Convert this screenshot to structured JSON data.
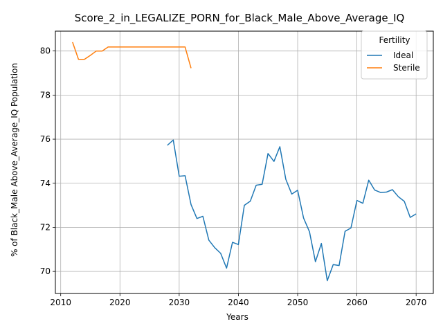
{
  "chart_data": {
    "type": "line",
    "title": "Score_2_in_LEGALIZE_PORN_for_Black_Male_Above_Average_IQ",
    "xlabel": "Years",
    "ylabel": "% of Black_Male Above_Average_IQ Population",
    "xlim": [
      2009.1,
      2072.9
    ],
    "ylim": [
      69.0,
      80.9
    ],
    "xticks": [
      2010,
      2020,
      2030,
      2040,
      2050,
      2060,
      2070
    ],
    "yticks": [
      70,
      72,
      74,
      76,
      78,
      80
    ],
    "grid": true,
    "legend": {
      "title": "Fertility",
      "placement": "top-right"
    },
    "series": [
      {
        "name": "Ideal",
        "color": "#1f77b4",
        "x": [
          2028,
          2029,
          2030,
          2031,
          2032,
          2033,
          2034,
          2035,
          2036,
          2037,
          2038,
          2039,
          2040,
          2041,
          2042,
          2043,
          2044,
          2045,
          2046,
          2047,
          2048,
          2049,
          2050,
          2051,
          2052,
          2053,
          2054,
          2055,
          2056,
          2057,
          2058,
          2059,
          2060,
          2061,
          2062,
          2063,
          2064,
          2065,
          2066,
          2067,
          2068,
          2069,
          2070
        ],
        "y": [
          75.72,
          75.96,
          74.32,
          74.34,
          73.03,
          72.4,
          72.5,
          71.42,
          71.08,
          70.82,
          70.15,
          71.32,
          71.22,
          73.0,
          73.19,
          73.91,
          73.95,
          75.35,
          74.99,
          75.66,
          74.18,
          73.51,
          73.68,
          72.42,
          71.8,
          70.44,
          71.27,
          69.58,
          70.31,
          70.27,
          71.82,
          71.97,
          73.22,
          73.09,
          74.14,
          73.69,
          73.58,
          73.6,
          73.71,
          73.39,
          73.18,
          72.45,
          72.61
        ]
      },
      {
        "name": "Sterile",
        "color": "#ff7f0e",
        "x": [
          2012,
          2013,
          2014,
          2015,
          2016,
          2017,
          2018,
          2019,
          2020,
          2021,
          2022,
          2023,
          2024,
          2025,
          2026,
          2027,
          2028,
          2029,
          2030,
          2031,
          2032
        ],
        "y": [
          80.4,
          79.62,
          79.62,
          79.8,
          80.0,
          80.0,
          80.18,
          80.18,
          80.18,
          80.18,
          80.18,
          80.18,
          80.18,
          80.18,
          80.18,
          80.18,
          80.18,
          80.18,
          80.18,
          80.18,
          79.22
        ]
      }
    ]
  }
}
